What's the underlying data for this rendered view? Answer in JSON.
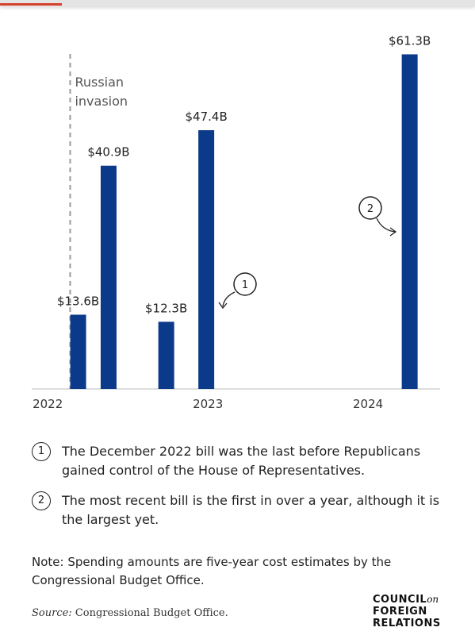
{
  "chart_data": {
    "type": "bar",
    "x": [
      2022.19,
      2022.38,
      2022.74,
      2022.99,
      2024.26
    ],
    "values": [
      13.6,
      40.9,
      12.3,
      47.4,
      61.3
    ],
    "value_labels": [
      "$13.6B",
      "$40.9B",
      "$12.3B",
      "$47.4B",
      "$61.3B"
    ],
    "color": "#0c3a8a",
    "xlim": [
      2021.9,
      2024.45
    ],
    "xticks": [
      2022,
      2023,
      2024
    ],
    "ylim": [
      0,
      65
    ],
    "event": {
      "x": 2022.14,
      "label": [
        "Russian",
        "invasion"
      ]
    },
    "notes": [
      {
        "marker": "1",
        "text": "The December 2022 bill was the last before Republicans gained control of the House of Representatives."
      },
      {
        "marker": "2",
        "text": "The most recent bill is the first in over a year, although it is the largest yet."
      }
    ],
    "note": "Note: Spending amounts are five-year cost estimates by the Congressional Budget Office.",
    "source_label": "Source:",
    "source": "Congressional Budget Office.",
    "logo": [
      "COUNCIL",
      "on",
      "FOREIGN",
      "RELATIONS"
    ]
  }
}
